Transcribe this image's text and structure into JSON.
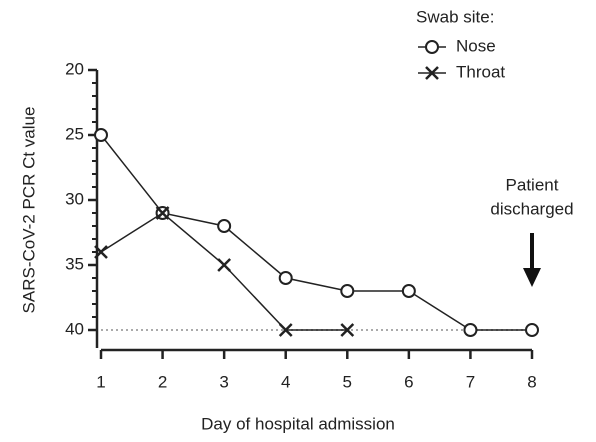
{
  "chart_data": {
    "type": "line",
    "x_label": "Day of hospital admission",
    "y_label": "SARS-CoV-2 PCR Ct value",
    "legend_title": "Swab site:",
    "legend": "upper right",
    "x": [
      1,
      2,
      3,
      4,
      5,
      6,
      7,
      8
    ],
    "series": [
      {
        "name": "Nose",
        "color": "#222222",
        "marker": "open-circle",
        "values": [
          25,
          31,
          32,
          36,
          37,
          37,
          40,
          40
        ]
      },
      {
        "name": "Throat",
        "color": "#222222",
        "marker": "x",
        "values": [
          34,
          31,
          35,
          40,
          40,
          null,
          null,
          null
        ]
      }
    ],
    "xlim": [
      1,
      8
    ],
    "xticks": [
      1,
      2,
      3,
      4,
      5,
      6,
      7,
      8
    ],
    "ylim": [
      20,
      40
    ],
    "yticks": [
      20,
      25,
      30,
      35,
      40
    ],
    "y_inverted": true,
    "yminorticks": [
      21,
      22,
      23,
      24,
      26,
      27,
      28,
      29,
      31,
      32,
      33,
      34,
      36,
      37,
      38,
      39
    ],
    "reference_line": {
      "y": 40,
      "color": "#aaaaaa",
      "style": "dotted"
    },
    "annotation": {
      "lines": [
        "Patient",
        "discharged"
      ],
      "x": 8
    }
  }
}
